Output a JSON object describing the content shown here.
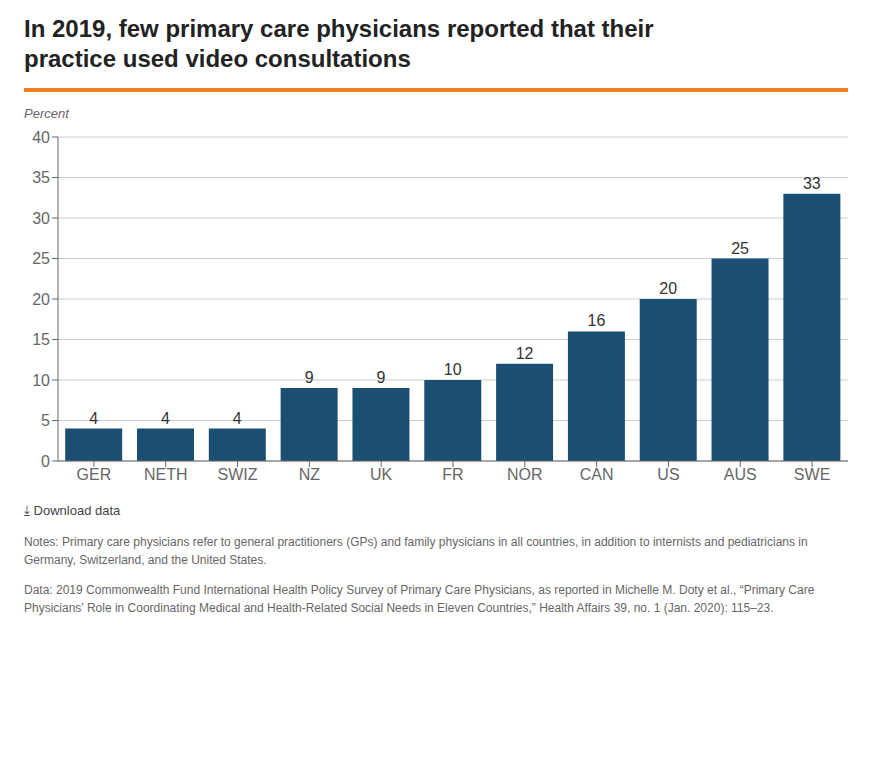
{
  "chart_data": {
    "type": "bar",
    "title": "In 2019, few primary care physicians reported that their\npractice used video consultations",
    "ylabel": "Percent",
    "categories": [
      "GER",
      "NETH",
      "SWIZ",
      "NZ",
      "UK",
      "FR",
      "NOR",
      "CAN",
      "US",
      "AUS",
      "SWE"
    ],
    "values": [
      4,
      4,
      4,
      9,
      9,
      10,
      12,
      16,
      20,
      25,
      33
    ],
    "color": "#1b4f72",
    "ylim": [
      0,
      40
    ],
    "yticks": [
      0,
      5,
      10,
      15,
      20,
      25,
      30,
      35,
      40
    ],
    "grid": true,
    "data_labels": true,
    "annotations": [
      "⤓  Download data",
      "Notes: Primary care physicians refer to general practitioners (GPs) and family physicians in all countries, in addition to internists and pediatricians in\nGermany, Switzerland, and the United States.",
      "Data: 2019 Commonwealth Fund International Health Policy Survey of Primary Care Physicians, as reported in Michelle M. Doty et al., “Primary Care\nPhysicians’ Role in Coordinating Medical and Health-Related Social Needs in Eleven Countries,” Health Affairs 39, no. 1 (Jan. 2020): 115–23."
    ]
  }
}
